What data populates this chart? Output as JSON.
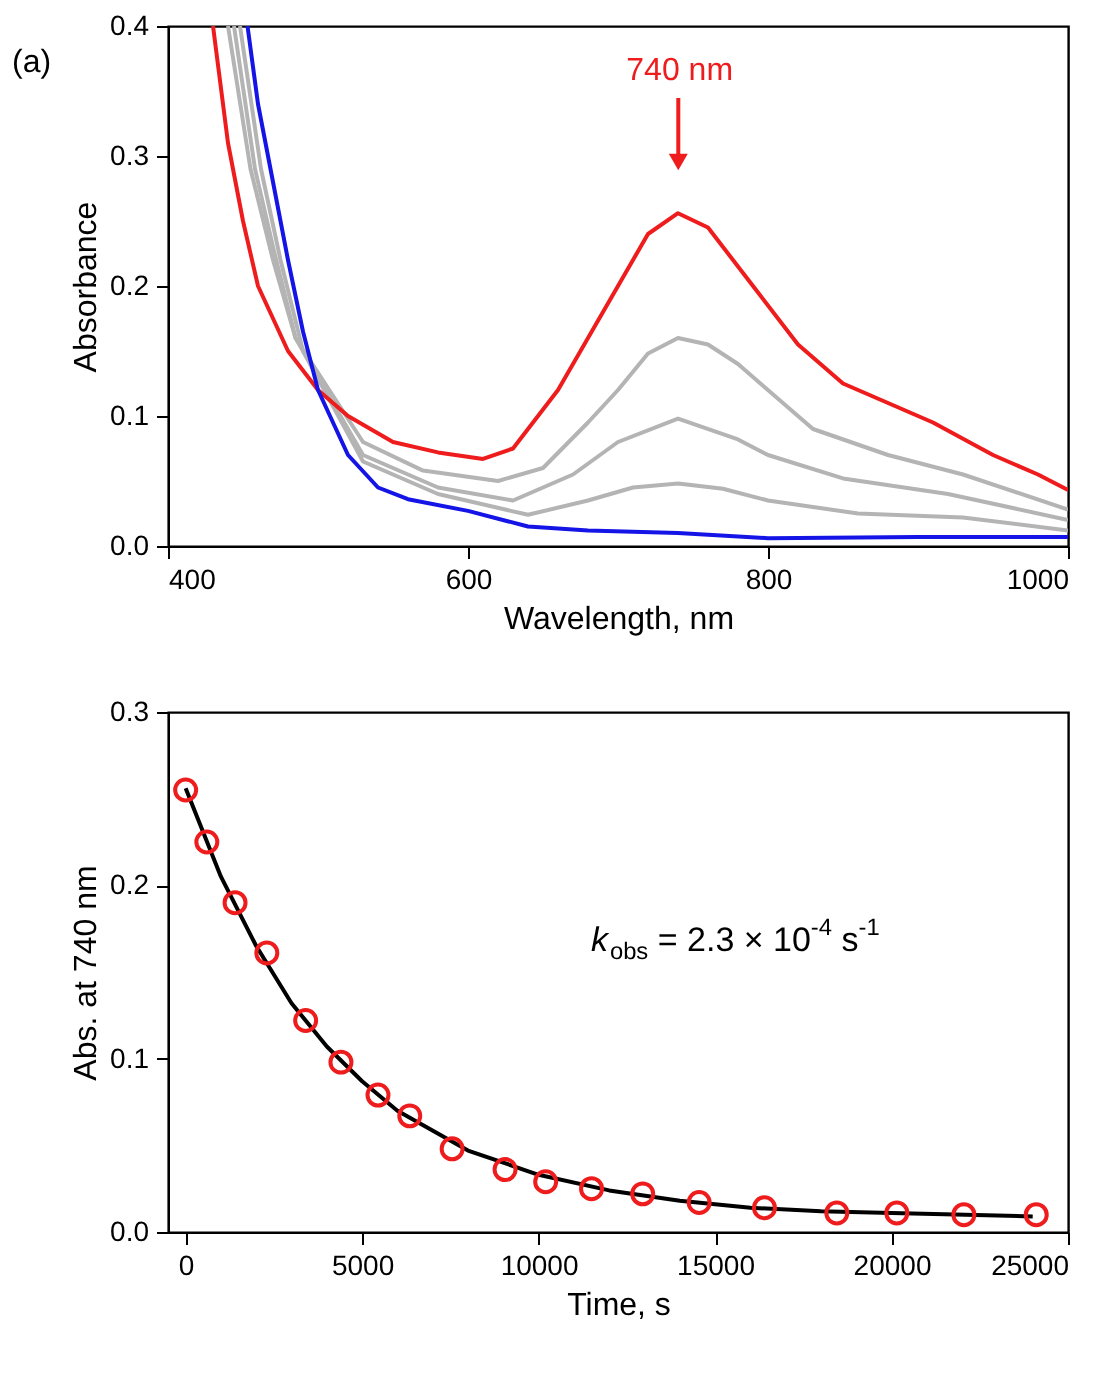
{
  "chart_data": [
    {
      "type": "line",
      "xlabel": "Wavelength, nm",
      "ylabel": "Absorbance",
      "xlim": [
        400,
        1000
      ],
      "ylim": [
        0,
        0.4
      ],
      "xticks": [
        400,
        600,
        800,
        1000
      ],
      "yticks": [
        {
          "value": 0,
          "label": "0.0"
        },
        0.1,
        0.2,
        0.3,
        0.4
      ],
      "grid": false,
      "line_style": "solid",
      "annotations": [
        "(a)",
        "740 nm"
      ],
      "series": [
        {
          "color": "#b4b4b4",
          "x": [
            440,
            455,
            470,
            485,
            530,
            570,
            620,
            650,
            680,
            700,
            720,
            740,
            760,
            780,
            830,
            880,
            930,
            1000
          ],
          "values": [
            0.4,
            0.29,
            0.22,
            0.16,
            0.08,
            0.058,
            0.05,
            0.06,
            0.095,
            0.12,
            0.148,
            0.16,
            0.155,
            0.14,
            0.09,
            0.07,
            0.055,
            0.028
          ]
        },
        {
          "color": "#b4b4b4",
          "x": [
            444,
            458,
            470,
            485,
            530,
            580,
            630,
            670,
            700,
            740,
            780,
            800,
            850,
            920,
            1000
          ],
          "values": [
            0.4,
            0.29,
            0.23,
            0.16,
            0.07,
            0.045,
            0.035,
            0.055,
            0.08,
            0.098,
            0.082,
            0.07,
            0.052,
            0.04,
            0.02
          ]
        },
        {
          "color": "#b4b4b4",
          "x": [
            448,
            462,
            475,
            490,
            530,
            580,
            640,
            680,
            710,
            740,
            770,
            800,
            860,
            930,
            1000
          ],
          "values": [
            0.4,
            0.29,
            0.22,
            0.15,
            0.065,
            0.04,
            0.024,
            0.035,
            0.045,
            0.048,
            0.044,
            0.035,
            0.025,
            0.022,
            0.012
          ]
        },
        {
          "color": "#ee1c1c",
          "x": [
            430,
            440,
            450,
            460,
            480,
            500,
            520,
            550,
            580,
            610,
            630,
            660,
            700,
            720,
            740,
            760,
            790,
            820,
            850,
            880,
            910,
            950,
            980,
            1000
          ],
          "values": [
            0.4,
            0.31,
            0.25,
            0.2,
            0.15,
            0.12,
            0.1,
            0.08,
            0.072,
            0.067,
            0.075,
            0.12,
            0.2,
            0.24,
            0.256,
            0.245,
            0.2,
            0.155,
            0.125,
            0.11,
            0.095,
            0.07,
            0.055,
            0.043
          ]
        },
        {
          "color": "#1414e6",
          "x": [
            453,
            460,
            470,
            480,
            490,
            500,
            520,
            540,
            560,
            600,
            640,
            680,
            740,
            800,
            900,
            1000
          ],
          "values": [
            0.4,
            0.34,
            0.28,
            0.22,
            0.165,
            0.12,
            0.07,
            0.045,
            0.036,
            0.027,
            0.015,
            0.012,
            0.01,
            0.006,
            0.007,
            0.007
          ]
        }
      ]
    },
    {
      "type": "scatter",
      "xlabel": "Time, s",
      "ylabel": "Abs. at 740 nm",
      "xlim": [
        -500,
        25000
      ],
      "ylim": [
        0,
        0.3
      ],
      "xticks": [
        0,
        5000,
        10000,
        15000,
        20000,
        25000
      ],
      "yticks": [
        {
          "value": 0,
          "label": "0.0"
        },
        0.1,
        0.2,
        0.3
      ],
      "grid": false,
      "line_style": "solid",
      "annotations": [
        "k$_{obs}$ = 2.3 × 10$^{-4}$ s$^{-1}$"
      ],
      "series": [
        {
          "type": "line",
          "marker": "none",
          "color": "#000000",
          "x": [
            0,
            1000,
            2000,
            3000,
            4000,
            5000,
            6000,
            8000,
            10000,
            12000,
            14000,
            16000,
            18000,
            20000,
            24000
          ],
          "values": [
            0.256,
            0.205,
            0.165,
            0.132,
            0.107,
            0.087,
            0.07,
            0.047,
            0.033,
            0.024,
            0.018,
            0.014,
            0.012,
            0.011,
            0.009
          ]
        },
        {
          "type": "scatter",
          "marker": "circle",
          "color": "#ee1c1c",
          "x": [
            0,
            600,
            1400,
            2300,
            3400,
            4400,
            5450,
            6350,
            7550,
            9050,
            10200,
            11500,
            12950,
            14550,
            16400,
            18450,
            20150,
            22050,
            24100
          ],
          "values": [
            0.255,
            0.225,
            0.19,
            0.161,
            0.122,
            0.098,
            0.079,
            0.067,
            0.048,
            0.036,
            0.029,
            0.025,
            0.022,
            0.017,
            0.014,
            0.011,
            0.011,
            0.01,
            0.01
          ]
        }
      ]
    }
  ]
}
